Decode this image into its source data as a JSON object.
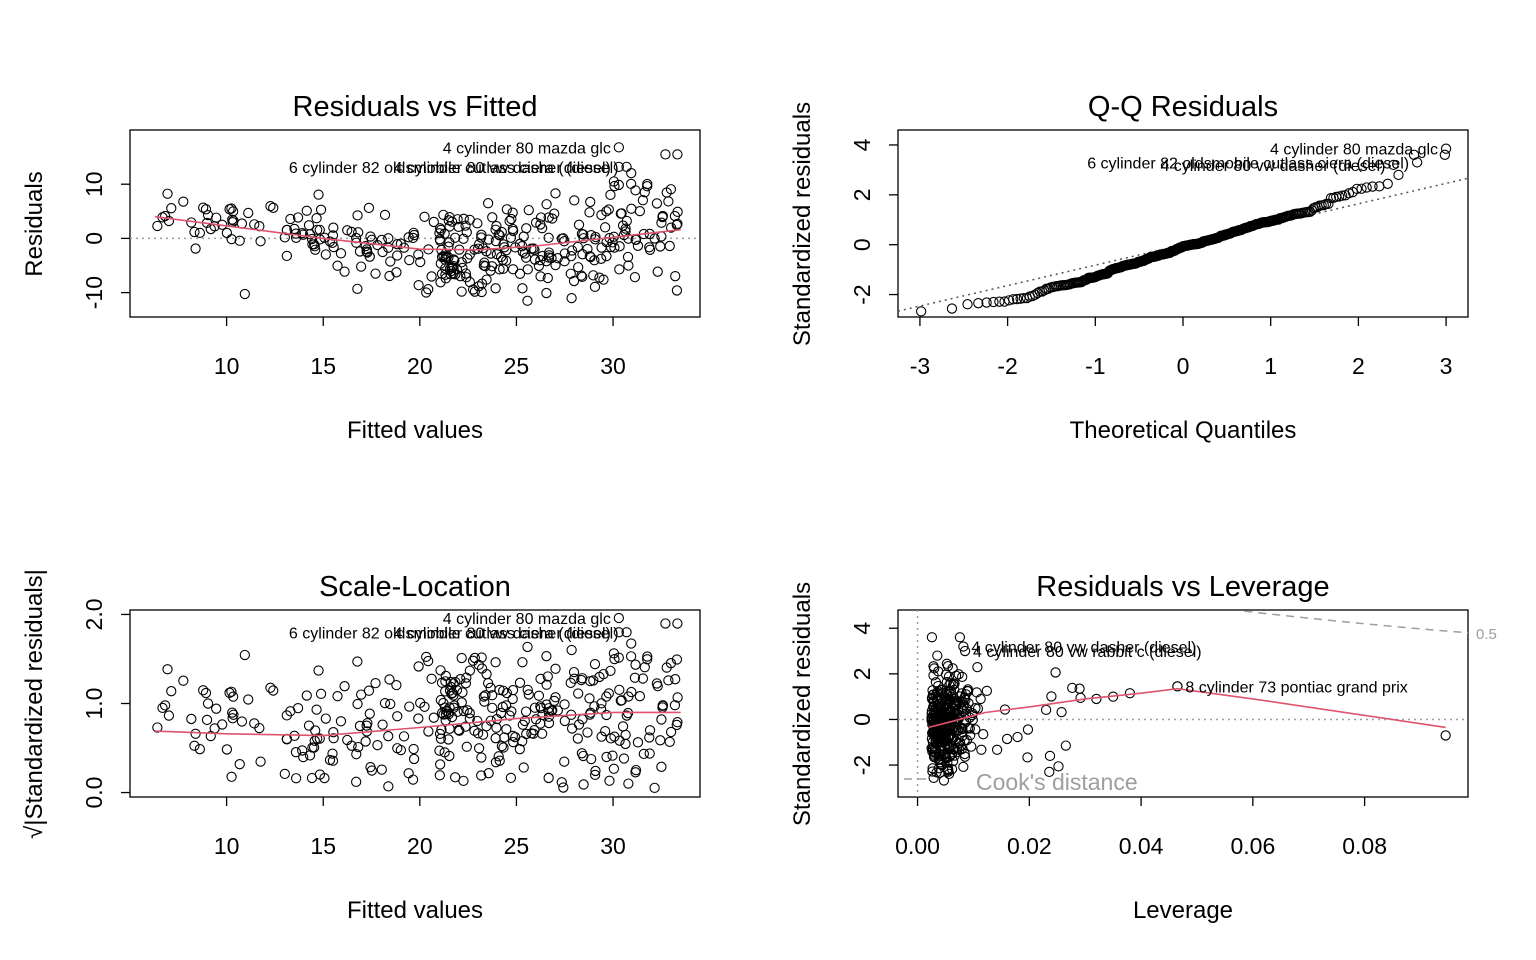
{
  "chart_data": [
    {
      "type": "scatter",
      "title": "Residuals vs Fitted",
      "xlabel": "Fitted values",
      "ylabel": "Residuals",
      "xlim": [
        5,
        34.5
      ],
      "ylim": [
        -14.5,
        20
      ],
      "xticks": [
        10,
        15,
        20,
        25,
        30
      ],
      "yticks": [
        -10,
        0,
        10
      ],
      "ref_line_y": 0,
      "smoother": [
        [
          6.3,
          4.0
        ],
        [
          10,
          2.3
        ],
        [
          15,
          0.0
        ],
        [
          20,
          -2.0
        ],
        [
          23,
          -2.1
        ],
        [
          26,
          -1.4
        ],
        [
          29,
          -0.2
        ],
        [
          33.5,
          1.6
        ]
      ],
      "labelled_points": [
        {
          "label": "4 cylinder 80 mazda glc",
          "x": 30.3,
          "y": 16.8
        },
        {
          "label": "6 cylinder 82 oldsmobile cutlass ciera (diesel)",
          "x": 30.3,
          "y": 13.2
        },
        {
          "label": "4 cylinder 80 vw dasher (diesel)",
          "x": 30.7,
          "y": 13.2
        }
      ]
    },
    {
      "type": "scatter",
      "title": "Q-Q Residuals",
      "xlabel": "Theoretical Quantiles",
      "ylabel": "Standardized residuals",
      "xlim": [
        -3.25,
        3.25
      ],
      "ylim": [
        -2.9,
        4.6
      ],
      "xticks": [
        -3,
        -2,
        -1,
        0,
        1,
        2,
        3
      ],
      "yticks": [
        -2,
        0,
        2,
        4
      ],
      "qq_line": {
        "intercept": 0.0,
        "slope": 0.82
      },
      "labelled_points": [
        {
          "label": "4 cylinder 80 mazda glc",
          "x": 3.0,
          "y": 3.85
        },
        {
          "label": "6 cylinder 82 oldsmobile cutlass ciera (diesel)",
          "x": 2.67,
          "y": 3.3
        },
        {
          "label": "4 cylinder 80 vw dasher (diesel)",
          "x": 2.4,
          "y": 3.2
        }
      ]
    },
    {
      "type": "scatter",
      "title": "Scale-Location",
      "xlabel": "Fitted values",
      "ylabel": "√|Standardized residuals|",
      "xlim": [
        5,
        34.5
      ],
      "ylim": [
        -0.05,
        2.05
      ],
      "xticks": [
        10,
        15,
        20,
        25,
        30
      ],
      "yticks": [
        0.0,
        1.0,
        2.0
      ],
      "ytick_labels": [
        "0.0",
        "1.0",
        "2.0"
      ],
      "smoother": [
        [
          6.3,
          0.69
        ],
        [
          10,
          0.66
        ],
        [
          15,
          0.64
        ],
        [
          20,
          0.73
        ],
        [
          25,
          0.83
        ],
        [
          30,
          0.9
        ],
        [
          33.5,
          0.9
        ]
      ],
      "labelled_points": [
        {
          "label": "4 cylinder 80 mazda glc",
          "x": 30.3,
          "y": 1.96
        },
        {
          "label": "6 cylinder 82 oldsmobile cutlass ciera (diesel)",
          "x": 30.3,
          "y": 1.8
        },
        {
          "label": "4 cylinder 80 vw dasher (diesel)",
          "x": 30.7,
          "y": 1.8
        }
      ]
    },
    {
      "type": "scatter",
      "title": "Residuals vs Leverage",
      "xlabel": "Leverage",
      "ylabel": "Standardized residuals",
      "xlim": [
        -0.0035,
        0.0985
      ],
      "ylim": [
        -3.4,
        4.8
      ],
      "xticks": [
        0.0,
        0.02,
        0.04,
        0.06,
        0.08
      ],
      "xtick_labels": [
        "0.00",
        "0.02",
        "0.04",
        "0.06",
        "0.08"
      ],
      "yticks": [
        -2,
        0,
        2,
        4
      ],
      "ref_line_y": 0,
      "ref_line_x": 0,
      "legend": "Cook's distance",
      "contour_label": "0.5",
      "smoother": [
        [
          0.002,
          -0.35
        ],
        [
          0.006,
          -0.1
        ],
        [
          0.012,
          0.3
        ],
        [
          0.02,
          0.55
        ],
        [
          0.03,
          0.9
        ],
        [
          0.04,
          1.15
        ],
        [
          0.0465,
          1.35
        ],
        [
          0.06,
          0.9
        ],
        [
          0.0945,
          -0.35
        ]
      ],
      "labelled_points": [
        {
          "label": "4 cylinder 80 vw dasher (diesel)",
          "x": 0.0082,
          "y": 3.2
        },
        {
          "label": "4 cylinder 80 vw rabbit c (diesel)",
          "x": 0.0085,
          "y": 3.0
        },
        {
          "label": "8 cylinder 73 pontiac grand prix",
          "x": 0.0465,
          "y": 1.45
        }
      ]
    }
  ]
}
